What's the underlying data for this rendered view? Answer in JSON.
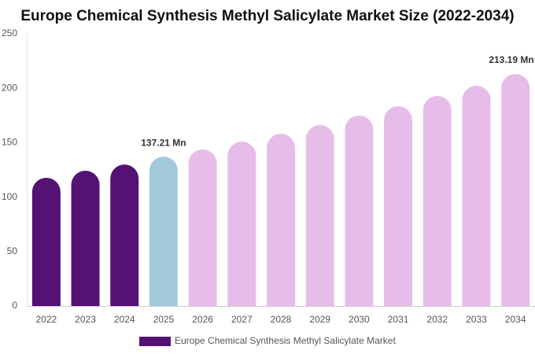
{
  "chart_data": {
    "type": "bar",
    "title": "Europe Chemical Synthesis Methyl Salicylate Market Size (2022-2034)",
    "categories": [
      "2022",
      "2023",
      "2024",
      "2025",
      "2026",
      "2027",
      "2028",
      "2029",
      "2030",
      "2031",
      "2032",
      "2033",
      "2034"
    ],
    "series": [
      {
        "name": "Europe Chemical Synthesis Methyl Salicylate Market",
        "color": "#541274",
        "values": [
          117.8,
          124.3,
          130.0,
          137.21,
          143.8,
          151.0,
          158.2,
          166.2,
          174.9,
          183.5,
          192.9,
          202.3,
          213.19
        ],
        "value_labels": [
          null,
          null,
          null,
          "137.21 Mn",
          null,
          null,
          null,
          null,
          null,
          null,
          null,
          null,
          "213.19 Mn"
        ],
        "bar_colors": [
          "#541274",
          "#541274",
          "#541274",
          "#a3c9dd",
          "#e6bde8",
          "#e6bde8",
          "#e6bde8",
          "#e6bde8",
          "#e6bde8",
          "#e6bde8",
          "#e6bde8",
          "#e6bde8",
          "#e6bde8"
        ]
      }
    ],
    "ylim": [
      0,
      250
    ],
    "yticks": [
      0,
      50,
      100,
      150,
      200,
      250
    ],
    "grid": false,
    "legend": "bottom"
  }
}
